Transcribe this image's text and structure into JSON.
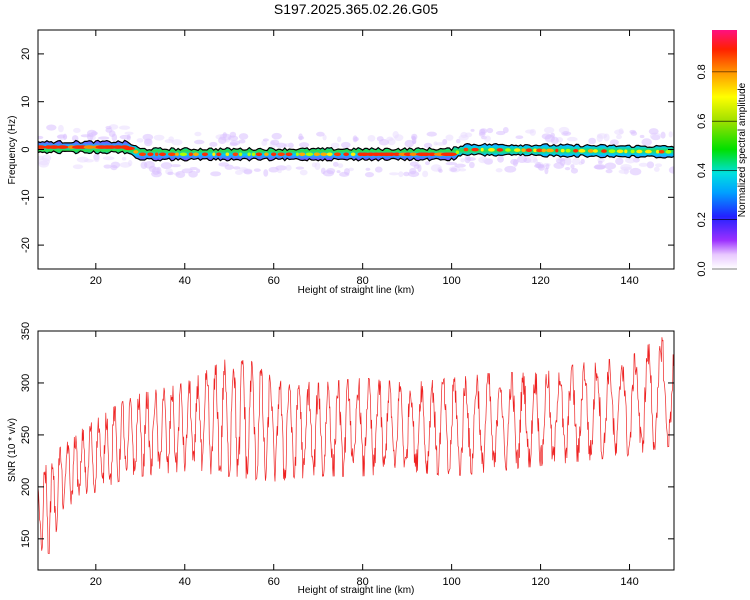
{
  "figure": {
    "title": "S197.2025.365.02.26.G05"
  },
  "colors": {
    "snr_line": "#ee2222",
    "frame": "#000000",
    "ridge_outline": "#000000"
  },
  "chart_data": [
    {
      "type": "heatmap",
      "xlabel": "Height of straight line (km)",
      "ylabel": "Frequency (Hz)",
      "xlim": [
        7,
        150
      ],
      "ylim": [
        -25,
        25
      ],
      "xticks": [
        20,
        40,
        60,
        80,
        100,
        120,
        140
      ],
      "xtick_labels": [
        "20",
        "40",
        "60",
        "80",
        "100",
        "120",
        "140"
      ],
      "yticks": [
        -20,
        -10,
        0,
        10,
        20
      ],
      "ytick_labels": [
        "-20",
        "-10",
        "0",
        "10",
        "20"
      ],
      "ridge_center_hz": [
        {
          "x": 7,
          "y": 0.5
        },
        {
          "x": 27,
          "y": 0.5
        },
        {
          "x": 30,
          "y": -1.0
        },
        {
          "x": 100,
          "y": -1.0
        },
        {
          "x": 103,
          "y": 0.0
        },
        {
          "x": 150,
          "y": -0.5
        }
      ],
      "colorbar": {
        "label": "Normalized spectral amplitude",
        "range": [
          0.0,
          0.97
        ],
        "ticks": [
          0.0,
          0.2,
          0.4,
          0.6,
          0.8
        ],
        "tick_labels": [
          "0.0",
          "0.2",
          "0.4",
          "0.6",
          "0.8"
        ],
        "colormap": "rainbow"
      }
    },
    {
      "type": "line",
      "xlabel": "Height of straight line (km)",
      "ylabel": "SNR (10 * v/v)",
      "xlim": [
        7,
        150
      ],
      "ylim": [
        120,
        350
      ],
      "xticks": [
        20,
        40,
        60,
        80,
        100,
        120,
        140
      ],
      "xtick_labels": [
        "20",
        "40",
        "60",
        "80",
        "100",
        "120",
        "140"
      ],
      "yticks": [
        150,
        200,
        250,
        300,
        350
      ],
      "ytick_labels": [
        "150",
        "200",
        "250",
        "300",
        "350"
      ],
      "series": [
        {
          "envelope_upper": [
            {
              "x": 7,
              "y": 215
            },
            {
              "x": 10,
              "y": 230
            },
            {
              "x": 15,
              "y": 250
            },
            {
              "x": 20,
              "y": 265
            },
            {
              "x": 25,
              "y": 280
            },
            {
              "x": 30,
              "y": 290
            },
            {
              "x": 40,
              "y": 300
            },
            {
              "x": 52,
              "y": 330
            },
            {
              "x": 60,
              "y": 305
            },
            {
              "x": 70,
              "y": 300
            },
            {
              "x": 80,
              "y": 305
            },
            {
              "x": 90,
              "y": 300
            },
            {
              "x": 100,
              "y": 305
            },
            {
              "x": 110,
              "y": 310
            },
            {
              "x": 120,
              "y": 310
            },
            {
              "x": 130,
              "y": 320
            },
            {
              "x": 140,
              "y": 325
            },
            {
              "x": 147,
              "y": 345
            },
            {
              "x": 150,
              "y": 335
            }
          ],
          "envelope_lower": [
            {
              "x": 7,
              "y": 140
            },
            {
              "x": 10,
              "y": 135
            },
            {
              "x": 12,
              "y": 175
            },
            {
              "x": 15,
              "y": 185
            },
            {
              "x": 20,
              "y": 195
            },
            {
              "x": 25,
              "y": 205
            },
            {
              "x": 30,
              "y": 210
            },
            {
              "x": 40,
              "y": 215
            },
            {
              "x": 50,
              "y": 210
            },
            {
              "x": 60,
              "y": 205
            },
            {
              "x": 70,
              "y": 210
            },
            {
              "x": 80,
              "y": 210
            },
            {
              "x": 90,
              "y": 215
            },
            {
              "x": 100,
              "y": 210
            },
            {
              "x": 110,
              "y": 215
            },
            {
              "x": 120,
              "y": 220
            },
            {
              "x": 130,
              "y": 225
            },
            {
              "x": 140,
              "y": 230
            },
            {
              "x": 150,
              "y": 240
            }
          ]
        }
      ]
    }
  ]
}
